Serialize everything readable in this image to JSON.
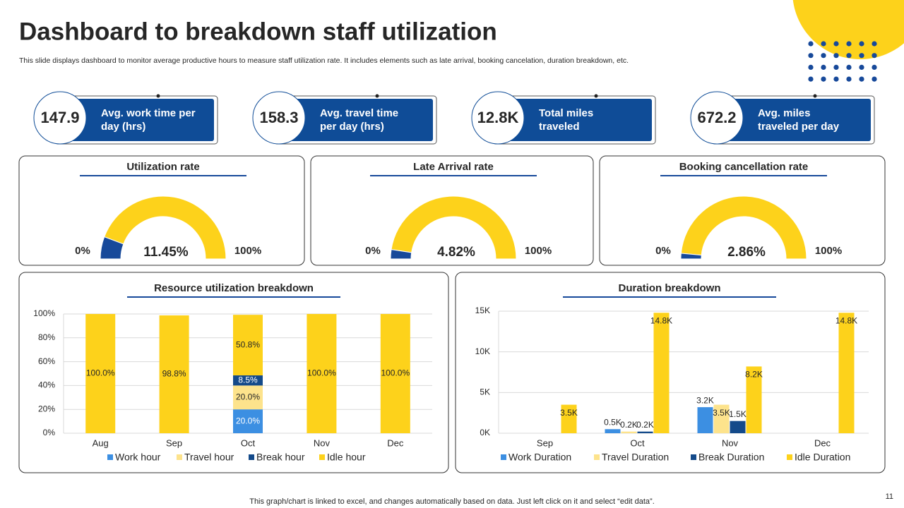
{
  "header": {
    "title": "Dashboard to breakdown staff utilization",
    "subtitle": "This slide displays dashboard to monitor average productive hours to measure staff utilization rate. It includes elements such as late arrival, booking cancelation, duration breakdown, etc."
  },
  "kpis": [
    {
      "value": "147.9",
      "label": [
        "Avg. work time per",
        "day (hrs)"
      ]
    },
    {
      "value": "158.3",
      "label": [
        "Avg. travel time",
        "per day (hrs)"
      ]
    },
    {
      "value": "12.8K",
      "label": [
        "Total miles",
        "traveled"
      ]
    },
    {
      "value": "672.2",
      "label": [
        "Avg. miles",
        "traveled per day"
      ]
    }
  ],
  "chart_data": [
    {
      "type": "gauge",
      "title": "Utilization rate",
      "value": 11.45,
      "value_label": "11.45%",
      "ylim": [
        0,
        100
      ],
      "yticks": [
        {
          "value": 0,
          "label": "0%"
        },
        {
          "value": 100,
          "label": "100%"
        }
      ],
      "color": "#17499a",
      "track_color": "#fdd21b"
    },
    {
      "type": "gauge",
      "title": "Late Arrival rate",
      "value": 4.82,
      "value_label": "4.82%",
      "ylim": [
        0,
        100
      ],
      "yticks": [
        {
          "value": 0,
          "label": "0%"
        },
        {
          "value": 100,
          "label": "100%"
        }
      ],
      "color": "#17499a",
      "track_color": "#fdd21b"
    },
    {
      "type": "gauge",
      "title": "Booking cancellation rate",
      "value": 2.86,
      "value_label": "2.86%",
      "ylim": [
        0,
        100
      ],
      "yticks": [
        {
          "value": 0,
          "label": "0%"
        },
        {
          "value": 100,
          "label": "100%"
        }
      ],
      "color": "#17499a",
      "track_color": "#fdd21b"
    },
    {
      "type": "stacked_bar",
      "title": "Resource utilization breakdown",
      "categories": [
        "Aug",
        "Sep",
        "Oct",
        "Nov",
        "Dec"
      ],
      "ylim": [
        0,
        100
      ],
      "grid": true,
      "yticks": [
        {
          "value": 0,
          "label": "0%"
        },
        {
          "value": 20,
          "label": "20%"
        },
        {
          "value": 40,
          "label": "40%"
        },
        {
          "value": 60,
          "label": "60%"
        },
        {
          "value": 80,
          "label": "80%"
        },
        {
          "value": 100,
          "label": "100%"
        }
      ],
      "series": [
        {
          "name": "Work hour",
          "color": "#3c8fe2",
          "values": [
            0,
            0,
            20,
            0,
            0
          ],
          "value_labels": [
            null,
            null,
            "20.0%",
            null,
            null
          ]
        },
        {
          "name": "Travel hour",
          "color": "#fde38c",
          "values": [
            0,
            0,
            20,
            0,
            0
          ],
          "value_labels": [
            null,
            null,
            "20.0%",
            null,
            null
          ]
        },
        {
          "name": "Break hour",
          "color": "#144a8a",
          "values": [
            0,
            0,
            8.5,
            0,
            0
          ],
          "value_labels": [
            null,
            null,
            "8.5%",
            null,
            null
          ]
        },
        {
          "name": "Idle hour",
          "color": "#fdd21b",
          "values": [
            100,
            98.8,
            50.8,
            100,
            100
          ],
          "value_labels": [
            "100.0%",
            "98.8%",
            "50.8%",
            "100.0%",
            "100.0%"
          ]
        }
      ]
    },
    {
      "type": "bar",
      "title": "Duration breakdown",
      "categories": [
        "Sep",
        "Oct",
        "Nov",
        "Dec"
      ],
      "ylim": [
        0,
        15000
      ],
      "grid": true,
      "yticks": [
        {
          "value": 0,
          "label": "0K"
        },
        {
          "value": 5000,
          "label": "5K"
        },
        {
          "value": 10000,
          "label": "10K"
        },
        {
          "value": 15000,
          "label": "15K"
        }
      ],
      "series": [
        {
          "name": "Work Duration",
          "color": "#3c8fe2",
          "values": [
            null,
            500,
            3200,
            null
          ],
          "value_labels": [
            null,
            "0.5K",
            "3.2K",
            null
          ]
        },
        {
          "name": "Travel Duration",
          "color": "#fde38c",
          "values": [
            null,
            200,
            3500,
            null
          ],
          "value_labels": [
            null,
            "0.2K",
            "3.5K",
            null
          ]
        },
        {
          "name": "Break Duration",
          "color": "#144a8a",
          "values": [
            null,
            200,
            1500,
            null
          ],
          "value_labels": [
            null,
            "0.2K",
            "1.5K",
            null
          ]
        },
        {
          "name": "Idle Duration",
          "color": "#fdd21b",
          "values": [
            3500,
            14800,
            8200,
            14800
          ],
          "value_labels": [
            "3.5K",
            "14.8K",
            "8.2K",
            "14.8K"
          ]
        }
      ]
    }
  ],
  "footer": "This graph/chart is linked to excel, and changes automatically based on data. Just left click on it and select “edit data”.",
  "page_number": "11"
}
